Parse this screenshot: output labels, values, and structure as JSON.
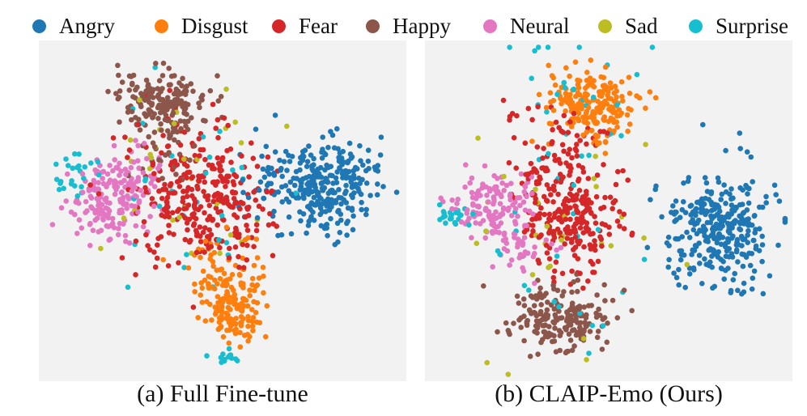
{
  "legend": [
    {
      "label": "Angry",
      "color": "#1f77b4"
    },
    {
      "label": "Disgust",
      "color": "#ff7f0e"
    },
    {
      "label": "Fear",
      "color": "#d62728"
    },
    {
      "label": "Happy",
      "color": "#8c564b"
    },
    {
      "label": "Neural",
      "color": "#e377c2"
    },
    {
      "label": "Sad",
      "color": "#bcbd22"
    },
    {
      "label": "Surprise",
      "color": "#17becf"
    }
  ],
  "chart_data": [
    {
      "type": "scatter",
      "title": "(a) Full Fine-tune",
      "xlabel": "",
      "ylabel": "",
      "grid": false,
      "clusters": [
        {
          "series": "Angry",
          "center": [
            0.78,
            0.42
          ],
          "spread": [
            0.07,
            0.07
          ],
          "count": 260
        },
        {
          "series": "Angry",
          "center": [
            0.64,
            0.4
          ],
          "spread": [
            0.06,
            0.06
          ],
          "count": 40
        },
        {
          "series": "Disgust",
          "center": [
            0.53,
            0.77
          ],
          "spread": [
            0.04,
            0.06
          ],
          "count": 150
        },
        {
          "series": "Disgust",
          "center": [
            0.49,
            0.67
          ],
          "spread": [
            0.06,
            0.05
          ],
          "count": 40
        },
        {
          "series": "Fear",
          "center": [
            0.45,
            0.49
          ],
          "spread": [
            0.09,
            0.09
          ],
          "count": 260
        },
        {
          "series": "Fear",
          "center": [
            0.38,
            0.34
          ],
          "spread": [
            0.08,
            0.08
          ],
          "count": 60
        },
        {
          "series": "Happy",
          "center": [
            0.34,
            0.18
          ],
          "spread": [
            0.06,
            0.05
          ],
          "count": 180
        },
        {
          "series": "Happy",
          "center": [
            0.35,
            0.32
          ],
          "spread": [
            0.05,
            0.05
          ],
          "count": 30
        },
        {
          "series": "Neural",
          "center": [
            0.2,
            0.47
          ],
          "spread": [
            0.06,
            0.06
          ],
          "count": 160
        },
        {
          "series": "Neural",
          "center": [
            0.26,
            0.38
          ],
          "spread": [
            0.05,
            0.05
          ],
          "count": 30
        },
        {
          "series": "Sad",
          "center": [
            0.38,
            0.4
          ],
          "spread": [
            0.12,
            0.14
          ],
          "count": 30
        },
        {
          "series": "Surprise",
          "center": [
            0.09,
            0.4
          ],
          "spread": [
            0.03,
            0.03
          ],
          "count": 25
        },
        {
          "series": "Surprise",
          "center": [
            0.4,
            0.45
          ],
          "spread": [
            0.12,
            0.15
          ],
          "count": 30
        },
        {
          "series": "Surprise",
          "center": [
            0.51,
            0.93
          ],
          "spread": [
            0.02,
            0.015
          ],
          "count": 15
        }
      ]
    },
    {
      "type": "scatter",
      "title": "(b) CLAIP-Emo (Ours)",
      "xlabel": "",
      "ylabel": "",
      "grid": false,
      "clusters": [
        {
          "series": "Angry",
          "center": [
            0.8,
            0.56
          ],
          "spread": [
            0.07,
            0.08
          ],
          "count": 320
        },
        {
          "series": "Disgust",
          "center": [
            0.45,
            0.19
          ],
          "spread": [
            0.055,
            0.055
          ],
          "count": 200
        },
        {
          "series": "Fear",
          "center": [
            0.4,
            0.52
          ],
          "spread": [
            0.07,
            0.08
          ],
          "count": 220
        },
        {
          "series": "Fear",
          "center": [
            0.35,
            0.33
          ],
          "spread": [
            0.07,
            0.07
          ],
          "count": 80
        },
        {
          "series": "Happy",
          "center": [
            0.36,
            0.82
          ],
          "spread": [
            0.07,
            0.05
          ],
          "count": 200
        },
        {
          "series": "Neural",
          "center": [
            0.18,
            0.49
          ],
          "spread": [
            0.05,
            0.05
          ],
          "count": 130
        },
        {
          "series": "Neural",
          "center": [
            0.26,
            0.6
          ],
          "spread": [
            0.05,
            0.04
          ],
          "count": 40
        },
        {
          "series": "Sad",
          "center": [
            0.4,
            0.55
          ],
          "spread": [
            0.12,
            0.18
          ],
          "count": 30
        },
        {
          "series": "Surprise",
          "center": [
            0.08,
            0.51
          ],
          "spread": [
            0.02,
            0.02
          ],
          "count": 20
        },
        {
          "series": "Surprise",
          "center": [
            0.45,
            0.12
          ],
          "spread": [
            0.1,
            0.1
          ],
          "count": 20
        },
        {
          "series": "Surprise",
          "center": [
            0.38,
            0.6
          ],
          "spread": [
            0.14,
            0.22
          ],
          "count": 30
        }
      ]
    }
  ]
}
